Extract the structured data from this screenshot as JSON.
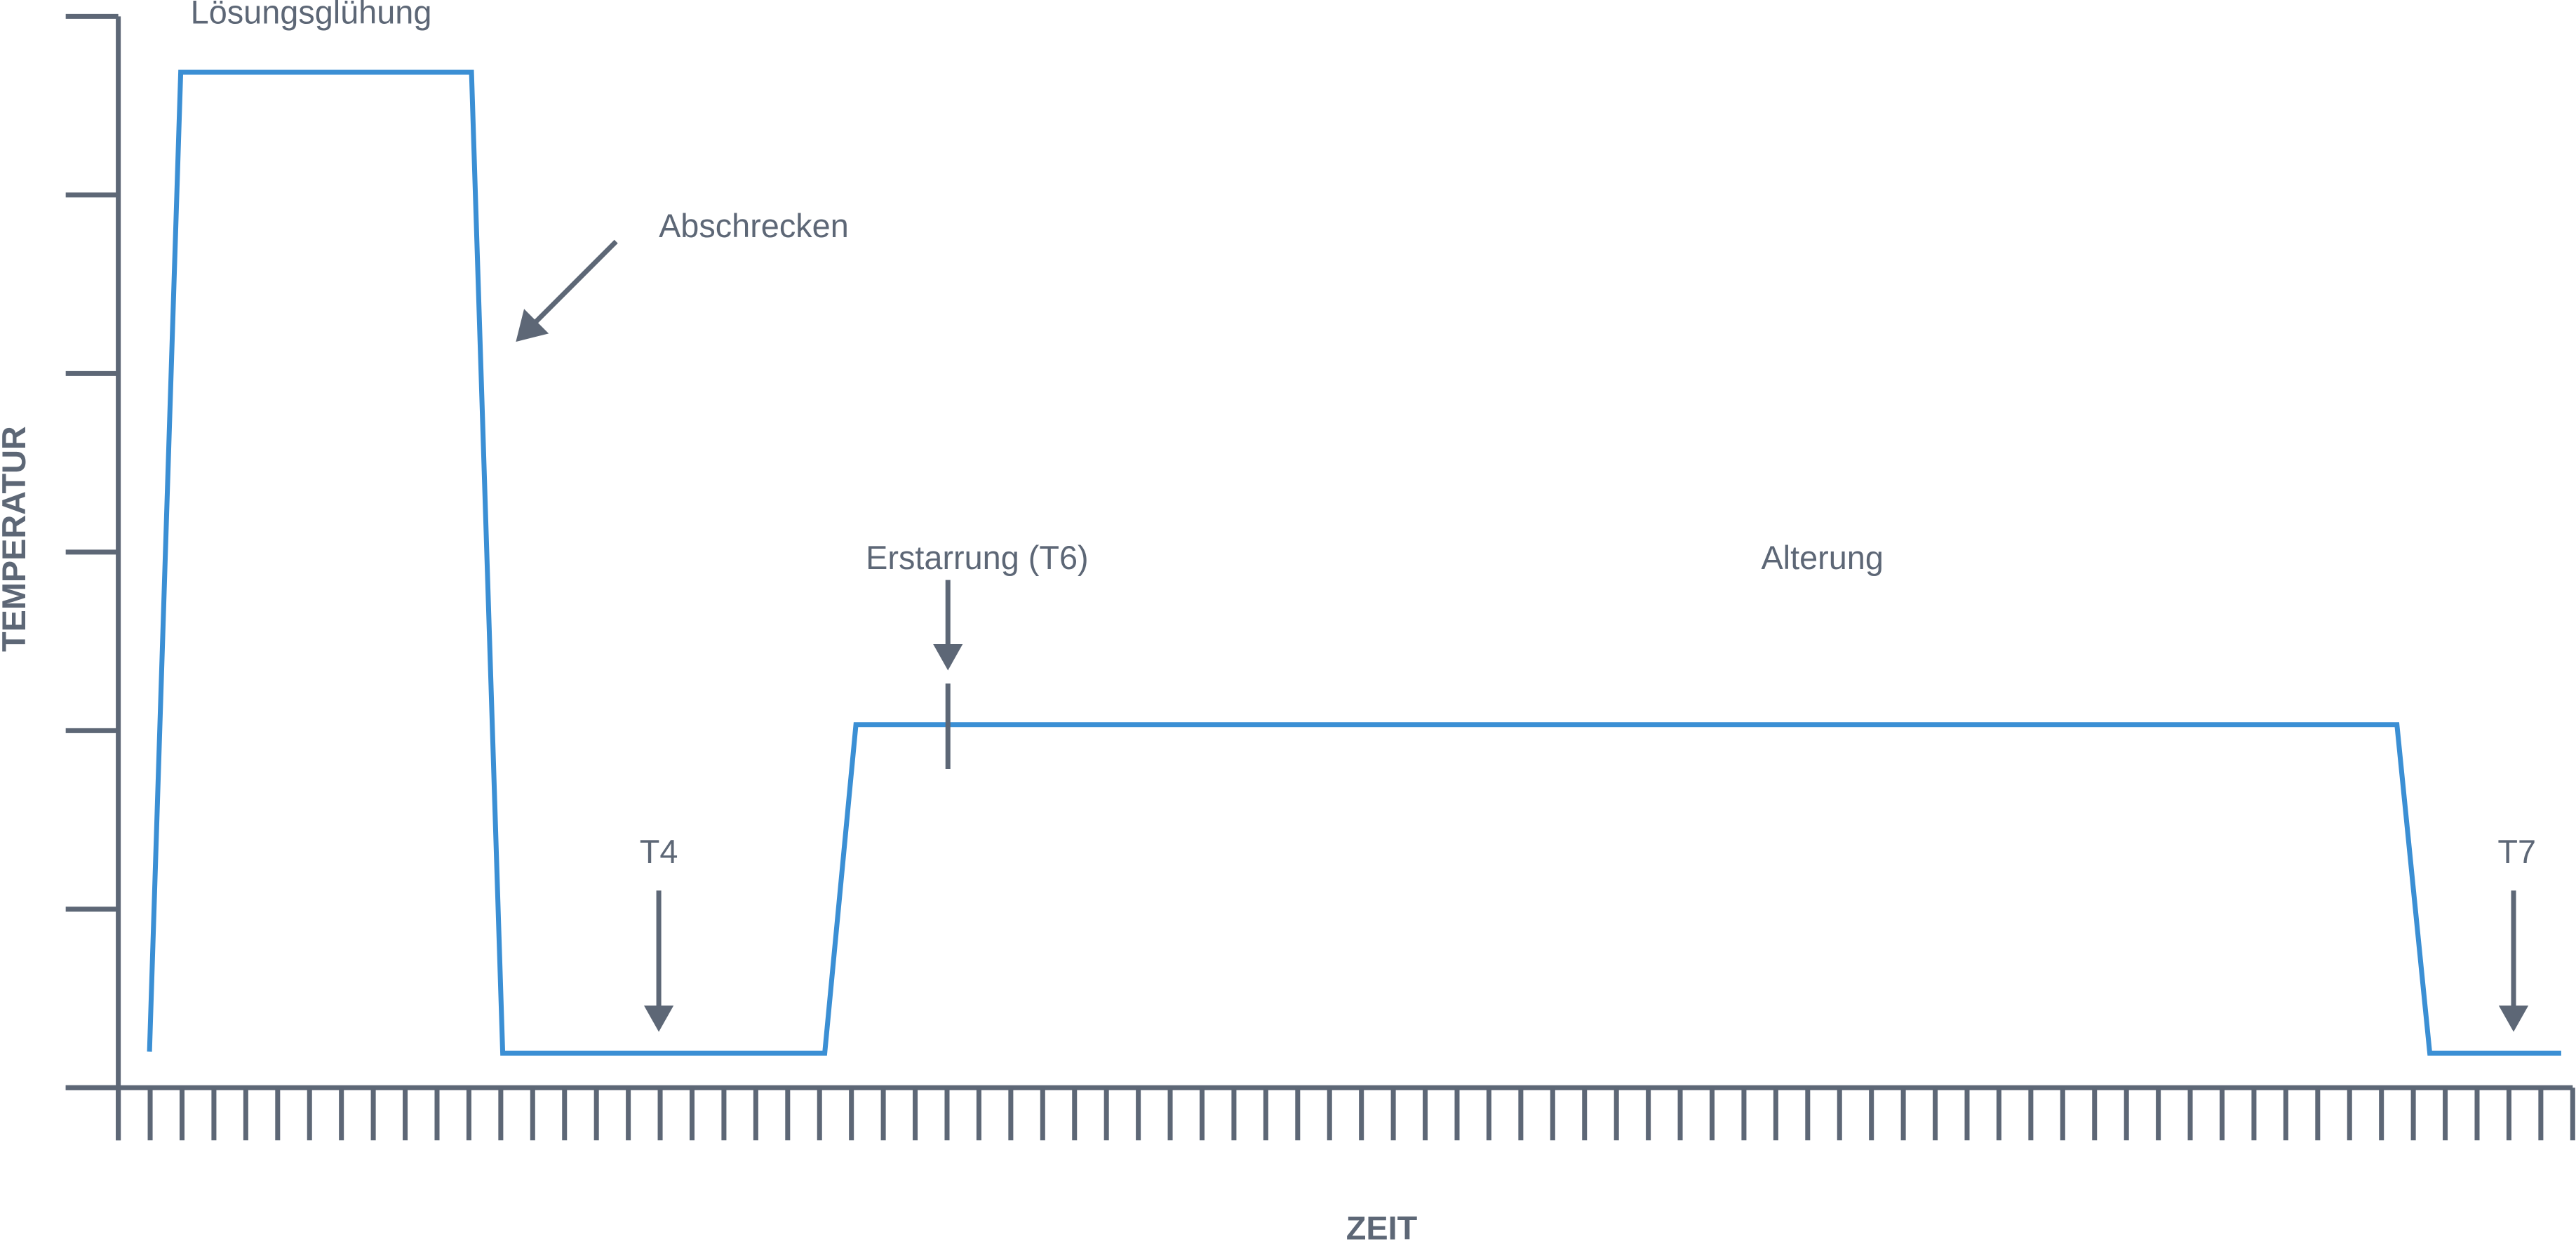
{
  "diagram": {
    "axis_labels": {
      "y": "TEMPERATUR",
      "x": "ZEIT"
    },
    "annotations": [
      "Lösungsglühung",
      "Abschrecken",
      "T4",
      "Erstarrung (T6)",
      "Alterung",
      "T7"
    ]
  }
}
